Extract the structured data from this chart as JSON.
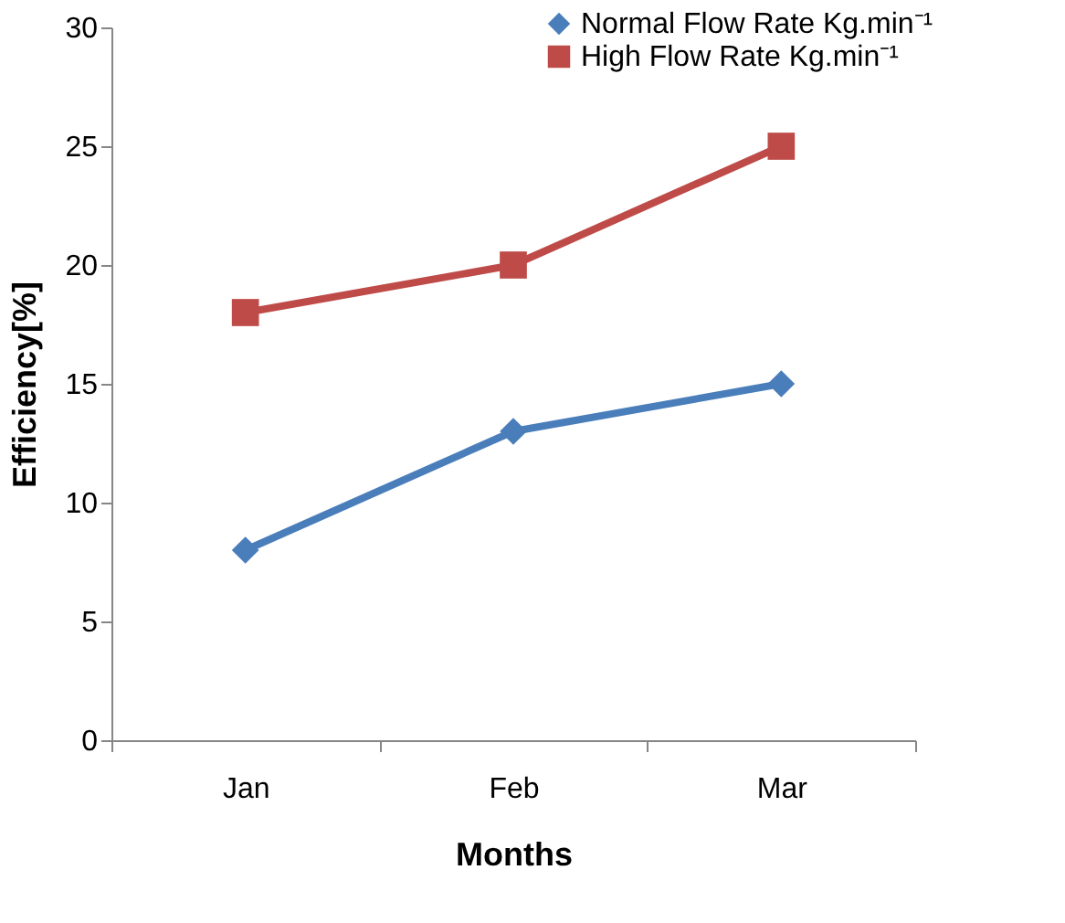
{
  "chart_data": {
    "type": "line",
    "xlabel": "Months",
    "ylabel": "Efficiency[%]",
    "categories": [
      "Jan",
      "Feb",
      "Mar"
    ],
    "series": [
      {
        "name": "Normal Flow Rate Kg.min⁻¹",
        "color": "#4a7ebb",
        "marker": "diamond",
        "values": [
          8,
          13,
          15
        ]
      },
      {
        "name": "High Flow Rate Kg.min⁻¹",
        "color": "#be4b48",
        "marker": "square",
        "values": [
          18,
          20,
          25
        ]
      }
    ],
    "ylim": [
      0,
      30
    ],
    "yticks": [
      0,
      5,
      10,
      15,
      20,
      25,
      30
    ],
    "grid": false,
    "legend": "top right",
    "line_style": "solid"
  }
}
